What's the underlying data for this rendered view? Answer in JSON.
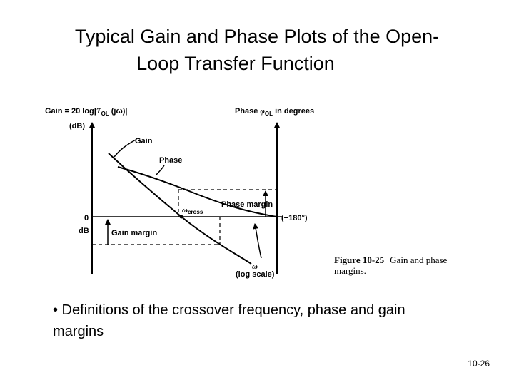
{
  "slide": {
    "title_line1": "Typical Gain and Phase Plots of the Open-",
    "title_line2": "Loop Transfer Function",
    "bullet": "• Definitions of the crossover frequency, phase and gain margins",
    "page_number": "10-26"
  },
  "figure": {
    "gain_axis_label_prefix": "Gain = 20 log|",
    "gain_axis_label_T": "T",
    "gain_axis_label_sub": "OL",
    "gain_axis_label_suffix": " (jω)|",
    "gain_axis_unit": "(dB)",
    "phase_axis_label_prefix": "Phase ",
    "phase_axis_label_phi": "φ",
    "phase_axis_label_sub": "OL",
    "phase_axis_label_suffix": " in degrees",
    "zero_label": "0",
    "db_label": "dB",
    "gain_curve_label": "Gain",
    "phase_curve_label": "Phase",
    "omega_cross_symbol": "ω",
    "omega_cross_sub": "cross",
    "phase_margin_label": "Phase margin",
    "gain_margin_label": "Gain margin",
    "minus180_label": "(−180°)",
    "omega_label": "ω",
    "log_scale_label": "(log scale)",
    "caption_bold": "Figure 10-25",
    "caption_line1": "Gain and phase",
    "caption_line2": "margins."
  }
}
